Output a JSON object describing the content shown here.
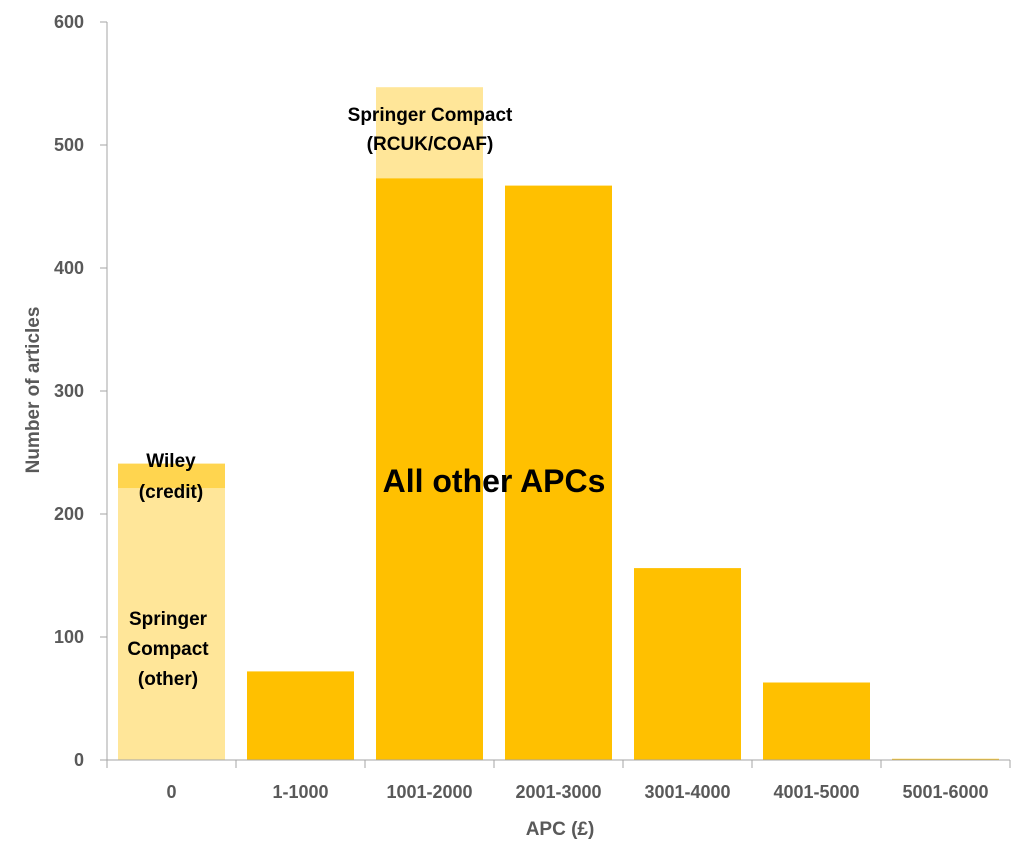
{
  "chart_data": {
    "type": "bar",
    "stacked": true,
    "xlabel": "APC (£)",
    "ylabel": "Number of articles",
    "ylim": [
      0,
      600
    ],
    "yticks": [
      0,
      100,
      200,
      300,
      400,
      500,
      600
    ],
    "grid": false,
    "categories": [
      "0",
      "1-1000",
      "1001-2000",
      "2001-3000",
      "3001-4000",
      "4001-5000",
      "5001-6000"
    ],
    "series": [
      {
        "name": "All other APCs",
        "values": [
          0,
          72,
          473,
          467,
          156,
          63,
          1
        ]
      },
      {
        "name": "Springer Compact (other)",
        "values": [
          221,
          0,
          0,
          0,
          0,
          0,
          0
        ]
      },
      {
        "name": "Wiley (credit)",
        "values": [
          20,
          0,
          0,
          0,
          0,
          0,
          0
        ]
      },
      {
        "name": "Springer Compact (RCUK/COAF)",
        "values": [
          0,
          0,
          74,
          0,
          0,
          0,
          0
        ]
      }
    ],
    "annotations": {
      "springer_rcuk_line1": "Springer Compact",
      "springer_rcuk_line2": "(RCUK/COAF)",
      "wiley_line1": "Wiley",
      "wiley_line2": "(credit)",
      "all_other": "All other APCs",
      "springer_other_line1": "Springer",
      "springer_other_line2": "Compact",
      "springer_other_line3": "(other)"
    },
    "colors": {
      "all_other": "#FFC000",
      "springer_other": "#FFE699",
      "wiley": "#FFD54F",
      "springer_rcuk": "#FFE699",
      "axis": "#A6A6A6",
      "text": "#595959"
    }
  }
}
